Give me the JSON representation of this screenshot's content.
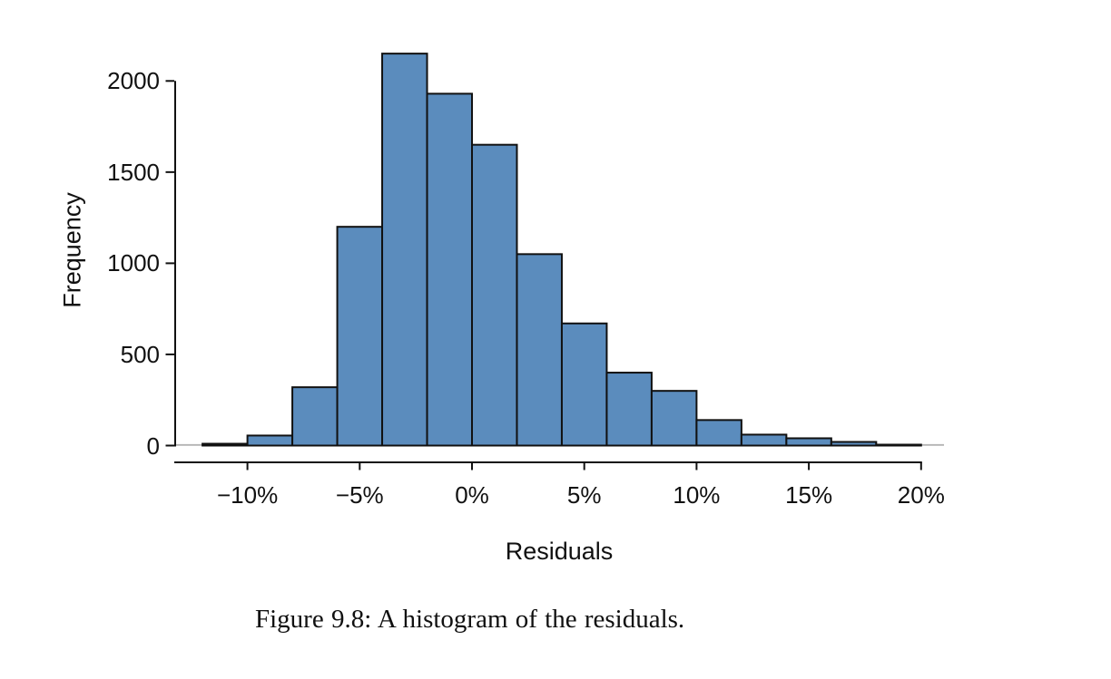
{
  "figure": {
    "caption": "Figure 9.8: A histogram of the residuals."
  },
  "chart_data": {
    "type": "bar",
    "subtype": "histogram",
    "title": "",
    "xlabel": "Residuals",
    "ylabel": "Frequency",
    "bin_start_percent": -12,
    "bin_width_percent": 2,
    "bin_edges_percent": [
      -12,
      -10,
      -8,
      -6,
      -4,
      -2,
      0,
      2,
      4,
      6,
      8,
      10,
      12,
      14,
      16,
      18,
      20
    ],
    "counts": [
      10,
      55,
      320,
      1200,
      2150,
      1930,
      1650,
      1050,
      670,
      400,
      300,
      140,
      60,
      40,
      20,
      5
    ],
    "x_ticks": [
      {
        "value": -10,
        "label": "−10%"
      },
      {
        "value": -5,
        "label": "−5%"
      },
      {
        "value": 0,
        "label": "0%"
      },
      {
        "value": 5,
        "label": "5%"
      },
      {
        "value": 10,
        "label": "10%"
      },
      {
        "value": 15,
        "label": "15%"
      },
      {
        "value": 20,
        "label": "20%"
      }
    ],
    "y_ticks": [
      {
        "value": 0,
        "label": "0"
      },
      {
        "value": 500,
        "label": "500"
      },
      {
        "value": 1000,
        "label": "1000"
      },
      {
        "value": 1500,
        "label": "1500"
      },
      {
        "value": 2000,
        "label": "2000"
      }
    ],
    "xlim_percent": [
      -13.2,
      21
    ],
    "ylim": [
      0,
      2200
    ],
    "grid": false,
    "legend": false,
    "bar_fill_color": "#5b8cbd",
    "bar_border_color": "#111111",
    "axis_color": "#111111",
    "zero_line_color": "#b3b3b3"
  }
}
